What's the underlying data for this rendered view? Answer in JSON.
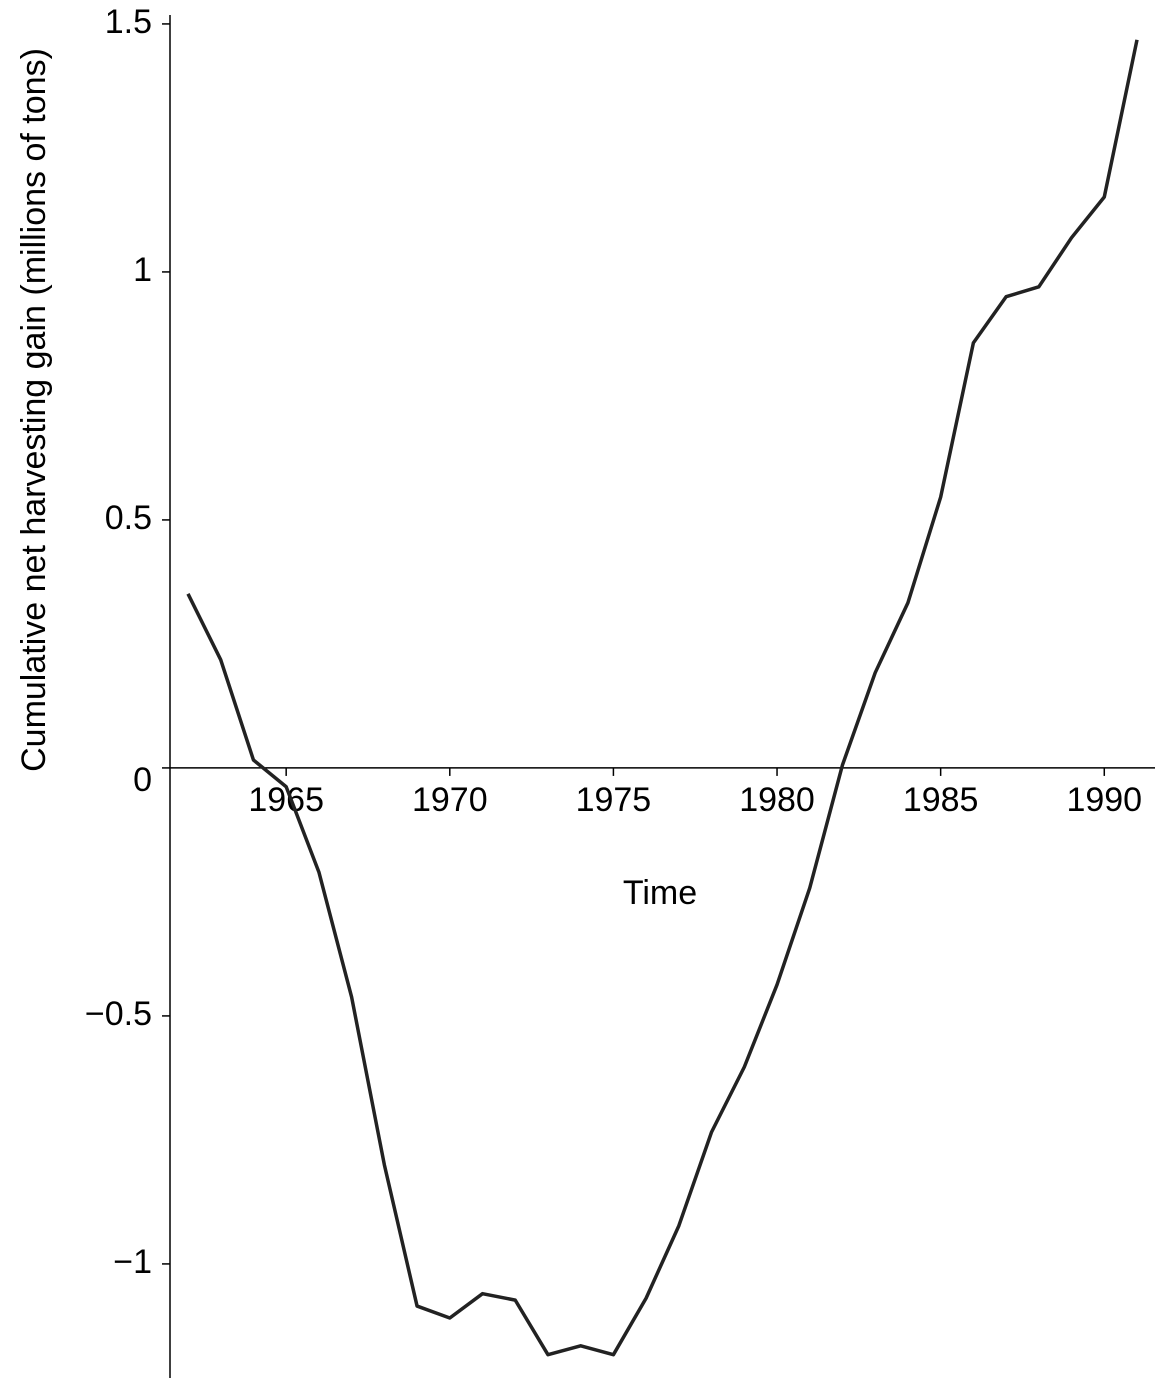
{
  "chart_data": {
    "type": "line",
    "x_label": "Time",
    "y_label": "Cumulative net harvesting gain (millions of tons)",
    "x": [
      1962,
      1963,
      1964,
      1965,
      1966,
      1967,
      1968,
      1969,
      1970,
      1971,
      1972,
      1973,
      1974,
      1975,
      1976,
      1977,
      1978,
      1979,
      1980,
      1981,
      1982,
      1983,
      1984,
      1985,
      1986,
      1987,
      1988,
      1989,
      1990,
      1991
    ],
    "series": [
      {
        "color": "#222222",
        "values": [
          0.351,
          0.218,
          0.016,
          -0.038,
          -0.21,
          -0.462,
          -0.8,
          -1.085,
          -1.109,
          -1.06,
          -1.073,
          -1.183,
          -1.165,
          -1.183,
          -1.069,
          -0.923,
          -0.734,
          -0.603,
          -0.437,
          -0.242,
          0.006,
          0.192,
          0.333,
          0.546,
          0.857,
          0.95,
          0.97,
          1.069,
          1.151,
          1.468
        ]
      }
    ],
    "xlim": [
      1961.45,
      1991.55
    ],
    "ylim": [
      -1.23,
      1.518
    ],
    "xticks": [
      1965,
      1970,
      1975,
      1980,
      1985,
      1990
    ],
    "yticks": [
      {
        "value": -1,
        "label": "−1"
      },
      {
        "value": -0.5,
        "label": "−0.5"
      },
      0,
      0.5,
      1,
      1.5
    ]
  }
}
